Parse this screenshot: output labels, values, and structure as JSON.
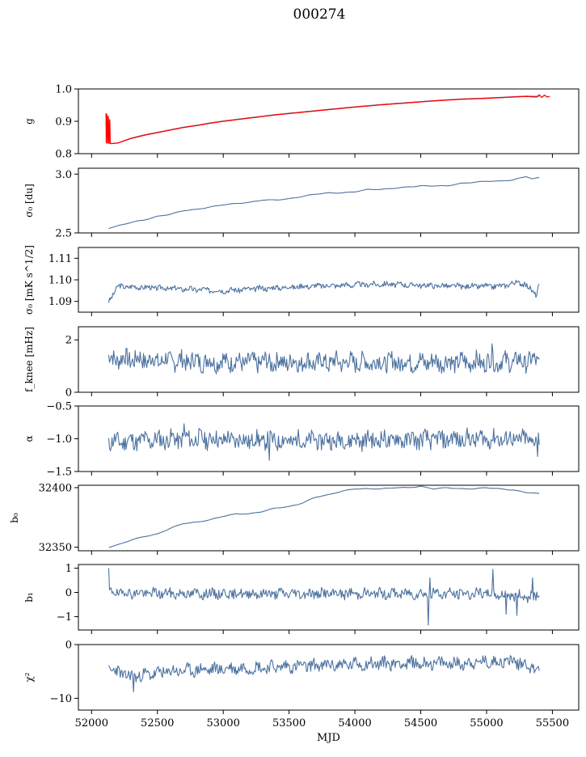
{
  "figure": {
    "title": "000274"
  },
  "chart_data": [
    {
      "type": "line",
      "ylabel": "g",
      "ylim": [
        0.8,
        1.0
      ],
      "yticks": [
        0.8,
        0.9,
        1.0
      ],
      "ytick_labels": [
        "0.8",
        "0.9",
        "1.0"
      ],
      "xlim": [
        51900,
        55700
      ],
      "series": [
        {
          "color": "#4c72a0",
          "kind": "trend",
          "points": [
            [
              52120,
              0.833
            ],
            [
              52150,
              0.831
            ],
            [
              52200,
              0.833
            ],
            [
              52300,
              0.848
            ],
            [
              52400,
              0.858
            ],
            [
              52500,
              0.866
            ],
            [
              52600,
              0.874
            ],
            [
              52700,
              0.882
            ],
            [
              52800,
              0.888
            ],
            [
              52900,
              0.895
            ],
            [
              53000,
              0.901
            ],
            [
              53200,
              0.911
            ],
            [
              53400,
              0.921
            ],
            [
              53600,
              0.929
            ],
            [
              53800,
              0.937
            ],
            [
              54000,
              0.945
            ],
            [
              54200,
              0.952
            ],
            [
              54400,
              0.958
            ],
            [
              54600,
              0.964
            ],
            [
              54800,
              0.969
            ],
            [
              55000,
              0.972
            ],
            [
              55200,
              0.976
            ],
            [
              55300,
              0.978
            ],
            [
              55400,
              0.977
            ]
          ]
        },
        {
          "color": "#ff0000",
          "kind": "trend-with-spikes",
          "points": [
            [
              52110,
              0.925
            ],
            [
              52112,
              0.833
            ],
            [
              52118,
              0.92
            ],
            [
              52122,
              0.833
            ],
            [
              52128,
              0.915
            ],
            [
              52132,
              0.833
            ],
            [
              52138,
              0.905
            ],
            [
              52142,
              0.833
            ],
            [
              52150,
              0.831
            ],
            [
              52200,
              0.833
            ],
            [
              52300,
              0.847
            ],
            [
              52400,
              0.857
            ],
            [
              52500,
              0.865
            ],
            [
              52600,
              0.873
            ],
            [
              52700,
              0.881
            ],
            [
              52800,
              0.887
            ],
            [
              52900,
              0.894
            ],
            [
              53000,
              0.9
            ],
            [
              53200,
              0.91
            ],
            [
              53400,
              0.92
            ],
            [
              53600,
              0.928
            ],
            [
              53800,
              0.936
            ],
            [
              54000,
              0.944
            ],
            [
              54200,
              0.951
            ],
            [
              54400,
              0.957
            ],
            [
              54600,
              0.963
            ],
            [
              54800,
              0.968
            ],
            [
              55000,
              0.971
            ],
            [
              55200,
              0.975
            ],
            [
              55300,
              0.977
            ],
            [
              55380,
              0.975
            ],
            [
              55400,
              0.982
            ],
            [
              55420,
              0.974
            ],
            [
              55440,
              0.981
            ],
            [
              55460,
              0.975
            ],
            [
              55480,
              0.977
            ]
          ]
        }
      ]
    },
    {
      "type": "line",
      "ylabel": "σ₀ [du]",
      "ylim": [
        2.5,
        3.05
      ],
      "yticks": [
        2.5,
        3.0
      ],
      "ytick_labels": [
        "2.5",
        "3.0"
      ],
      "xlim": [
        51900,
        55700
      ],
      "series": [
        {
          "color": "#4c72a0",
          "kind": "trend",
          "points": [
            [
              52130,
              2.54
            ],
            [
              52200,
              2.56
            ],
            [
              52300,
              2.59
            ],
            [
              52400,
              2.61
            ],
            [
              52500,
              2.64
            ],
            [
              52600,
              2.66
            ],
            [
              52700,
              2.69
            ],
            [
              52800,
              2.7
            ],
            [
              52900,
              2.72
            ],
            [
              53000,
              2.74
            ],
            [
              53100,
              2.75
            ],
            [
              53200,
              2.76
            ],
            [
              53300,
              2.78
            ],
            [
              53400,
              2.78
            ],
            [
              53500,
              2.79
            ],
            [
              53600,
              2.81
            ],
            [
              53700,
              2.83
            ],
            [
              53800,
              2.84
            ],
            [
              53900,
              2.84
            ],
            [
              54000,
              2.85
            ],
            [
              54100,
              2.87
            ],
            [
              54200,
              2.87
            ],
            [
              54300,
              2.88
            ],
            [
              54400,
              2.89
            ],
            [
              54500,
              2.9
            ],
            [
              54600,
              2.9
            ],
            [
              54700,
              2.9
            ],
            [
              54800,
              2.92
            ],
            [
              54900,
              2.93
            ],
            [
              55000,
              2.94
            ],
            [
              55100,
              2.94
            ],
            [
              55200,
              2.95
            ],
            [
              55300,
              2.98
            ],
            [
              55350,
              2.96
            ],
            [
              55400,
              2.97
            ]
          ]
        }
      ]
    },
    {
      "type": "line",
      "ylabel": "σ₀ [mK s^1/2]",
      "ylim": [
        1.085,
        1.115
      ],
      "yticks": [
        1.09,
        1.1,
        1.11
      ],
      "ytick_labels": [
        "1.09",
        "1.10",
        "1.11"
      ],
      "xlim": [
        51900,
        55700
      ],
      "series": [
        {
          "color": "#4c72a0",
          "kind": "noisy",
          "x_range": [
            52130,
            55400
          ],
          "base": 1.0965,
          "amplitude": 0.0012,
          "spikes": [],
          "seed": 3,
          "points": [
            [
              52130,
              1.09
            ],
            [
              52160,
              1.093
            ],
            [
              52200,
              1.097
            ],
            [
              52600,
              1.096
            ],
            [
              53000,
              1.095
            ],
            [
              53600,
              1.097
            ],
            [
              54200,
              1.098
            ],
            [
              54800,
              1.097
            ],
            [
              55100,
              1.097
            ],
            [
              55250,
              1.099
            ],
            [
              55330,
              1.096
            ],
            [
              55380,
              1.093
            ],
            [
              55400,
              1.098
            ]
          ]
        }
      ]
    },
    {
      "type": "line",
      "ylabel": "f_knee [mHz]",
      "ylim": [
        0,
        2.5
      ],
      "yticks": [
        0,
        2
      ],
      "ytick_labels": [
        "0",
        "2"
      ],
      "xlim": [
        51900,
        55700
      ],
      "series": [
        {
          "color": "#4c72a0",
          "kind": "noisy",
          "x_range": [
            52130,
            55400
          ],
          "base": 1.15,
          "amplitude": 0.35,
          "spikes": [
            [
              55040,
              1.85
            ]
          ],
          "seed": 7,
          "points": [
            [
              52130,
              1.3
            ],
            [
              52600,
              1.2
            ],
            [
              53200,
              1.15
            ],
            [
              53800,
              1.15
            ],
            [
              54400,
              1.15
            ],
            [
              55000,
              1.15
            ],
            [
              55400,
              1.2
            ]
          ]
        }
      ]
    },
    {
      "type": "line",
      "ylabel": "α",
      "ylim": [
        -1.5,
        -0.5
      ],
      "yticks": [
        -1.5,
        -1.0,
        -0.5
      ],
      "ytick_labels": [
        "−1.5",
        "−1.0",
        "−0.5"
      ],
      "xlim": [
        51900,
        55700
      ],
      "series": [
        {
          "color": "#4c72a0",
          "kind": "noisy",
          "x_range": [
            52130,
            55400
          ],
          "base": -1.02,
          "amplitude": 0.13,
          "spikes": [
            [
              52700,
              -0.77
            ],
            [
              53350,
              -1.33
            ],
            [
              55390,
              -1.27
            ]
          ],
          "seed": 11,
          "points": [
            [
              52130,
              -1.05
            ],
            [
              52700,
              -1.0
            ],
            [
              53400,
              -1.03
            ],
            [
              54200,
              -1.02
            ],
            [
              55000,
              -1.0
            ],
            [
              55400,
              -1.02
            ]
          ]
        }
      ]
    },
    {
      "type": "line",
      "ylabel": "b₀",
      "ylim": [
        32347,
        32402
      ],
      "yticks": [
        32350,
        32400
      ],
      "ytick_labels": [
        "32350",
        "32400"
      ],
      "xlim": [
        51900,
        55700
      ],
      "series": [
        {
          "color": "#4c72a0",
          "kind": "trend",
          "points": [
            [
              52130,
              32350
            ],
            [
              52200,
              32352
            ],
            [
              52300,
              32356
            ],
            [
              52400,
              32359
            ],
            [
              52500,
              32361
            ],
            [
              52600,
              32366
            ],
            [
              52700,
              32370
            ],
            [
              52800,
              32371
            ],
            [
              52900,
              32373
            ],
            [
              53000,
              32376
            ],
            [
              53100,
              32378
            ],
            [
              53200,
              32378
            ],
            [
              53300,
              32380
            ],
            [
              53400,
              32383
            ],
            [
              53500,
              32384
            ],
            [
              53600,
              32387
            ],
            [
              53700,
              32392
            ],
            [
              53800,
              32394
            ],
            [
              53900,
              32397
            ],
            [
              54000,
              32399
            ],
            [
              54100,
              32399
            ],
            [
              54200,
              32399
            ],
            [
              54300,
              32400
            ],
            [
              54400,
              32400
            ],
            [
              54500,
              32401
            ],
            [
              54600,
              32399
            ],
            [
              54700,
              32400
            ],
            [
              54800,
              32399
            ],
            [
              54900,
              32399
            ],
            [
              55000,
              32400
            ],
            [
              55100,
              32399
            ],
            [
              55200,
              32398
            ],
            [
              55300,
              32396
            ],
            [
              55400,
              32395
            ]
          ]
        }
      ]
    },
    {
      "type": "line",
      "ylabel": "b₁",
      "ylim": [
        -1.55,
        1.15
      ],
      "yticks": [
        -1,
        0,
        1
      ],
      "ytick_labels": [
        "−1",
        "0",
        "1"
      ],
      "xlim": [
        51900,
        55700
      ],
      "series": [
        {
          "color": "#4c72a0",
          "kind": "noisy",
          "x_range": [
            52130,
            55400
          ],
          "base": -0.05,
          "amplitude": 0.2,
          "spikes": [
            [
              52132,
              1.0
            ],
            [
              54560,
              -1.35
            ],
            [
              54570,
              0.6
            ],
            [
              55050,
              0.95
            ],
            [
              55150,
              -0.9
            ],
            [
              55230,
              -0.95
            ],
            [
              55350,
              0.6
            ]
          ],
          "seed": 19,
          "points": [
            [
              52130,
              0.0
            ],
            [
              52600,
              -0.05
            ],
            [
              53400,
              -0.05
            ],
            [
              54200,
              -0.05
            ],
            [
              55000,
              -0.05
            ],
            [
              55400,
              -0.2
            ]
          ]
        }
      ]
    },
    {
      "type": "line",
      "ylabel": "χ²",
      "xlabel": "MJD",
      "ylim": [
        -12.2,
        0
      ],
      "yticks": [
        -10,
        0
      ],
      "ytick_labels": [
        "−10",
        "0"
      ],
      "xlim": [
        51900,
        55700
      ],
      "xticks": [
        52000,
        52500,
        53000,
        53500,
        54000,
        54500,
        55000,
        55500
      ],
      "xtick_labels": [
        "52000",
        "52500",
        "53000",
        "53500",
        "54000",
        "54500",
        "55000",
        "55500"
      ],
      "series": [
        {
          "color": "#4c72a0",
          "kind": "noisy",
          "x_range": [
            52130,
            55400
          ],
          "base": -4.0,
          "amplitude": 1.1,
          "spikes": [
            [
              52320,
              -8.8
            ]
          ],
          "seed": 23,
          "points": [
            [
              52130,
              -4.5
            ],
            [
              52300,
              -6.0
            ],
            [
              52600,
              -5.0
            ],
            [
              53000,
              -4.5
            ],
            [
              53600,
              -4.0
            ],
            [
              54200,
              -3.5
            ],
            [
              54800,
              -3.5
            ],
            [
              55200,
              -3.0
            ],
            [
              55400,
              -4.5
            ]
          ]
        }
      ]
    }
  ]
}
